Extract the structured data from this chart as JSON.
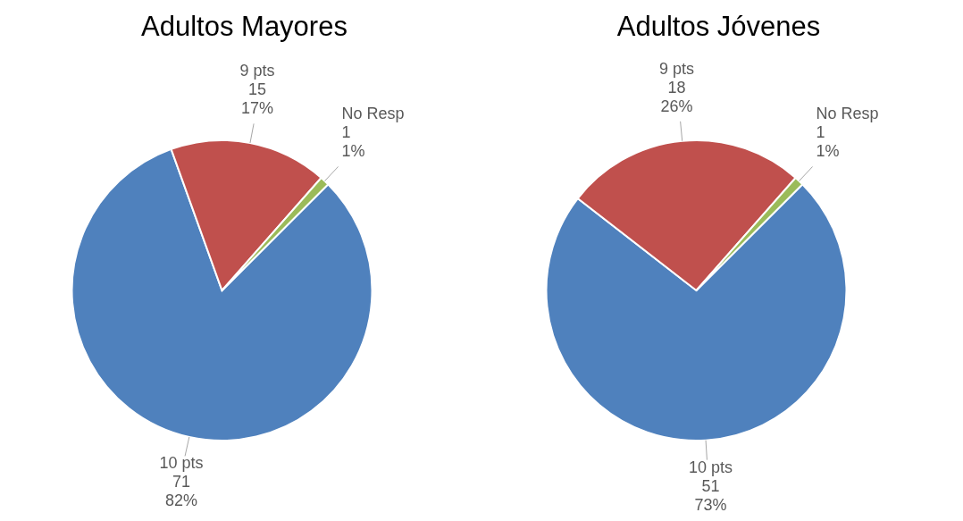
{
  "chart_data": [
    {
      "type": "pie",
      "title": "Adultos Mayores",
      "categories": [
        "10 pts",
        "9 pts",
        "No Resp"
      ],
      "values": [
        82,
        17,
        1
      ],
      "colors": [
        "#4f81bd",
        "#c0504d",
        "#9bbb59"
      ],
      "value_labels": [
        "71\n82%",
        "15\n17%",
        "1\n1%"
      ]
    },
    {
      "type": "pie",
      "title": "Adultos Jóvenes",
      "categories": [
        "10 pts",
        "9 pts",
        "No Resp"
      ],
      "values": [
        73,
        26,
        1
      ],
      "colors": [
        "#4f81bd",
        "#c0504d",
        "#9bbb59"
      ],
      "value_labels": [
        "51\n73%",
        "18\n26%",
        "1\n1%"
      ]
    }
  ]
}
